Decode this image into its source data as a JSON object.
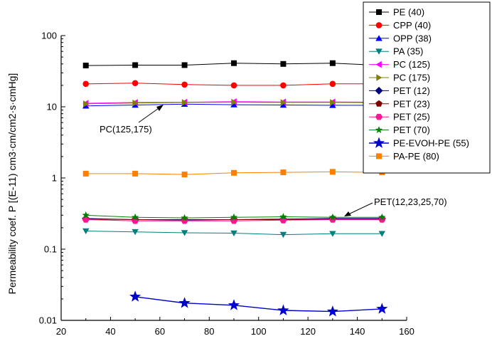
{
  "chart_data": {
    "type": "line",
    "title": "",
    "xlabel": "",
    "ylabel": "Permeability coef. P [(E-11) cm3·cm/cm2·s·cmHg]",
    "xlim": [
      20,
      160
    ],
    "ylim": [
      0.01,
      100
    ],
    "yscale": "log",
    "x_ticks": [
      "20",
      "40",
      "60",
      "80",
      "100",
      "120",
      "140",
      "160"
    ],
    "y_ticks": [
      "0.01",
      "0.1",
      "1",
      "10",
      "100"
    ],
    "grid": false,
    "legend_position": "top-right",
    "series": [
      {
        "name": "PE (40)",
        "color": "#000000",
        "marker": "square",
        "x": [
          30,
          50,
          70,
          90,
          110,
          130,
          150
        ],
        "y": [
          38,
          38.5,
          38.5,
          41,
          40,
          41,
          38
        ]
      },
      {
        "name": "CPP (40)",
        "color": "#ff0000",
        "marker": "circle",
        "x": [
          30,
          50,
          70,
          90,
          110,
          130,
          150
        ],
        "y": [
          21,
          21.5,
          20.5,
          20,
          20,
          21,
          21
        ]
      },
      {
        "name": "OPP (38)",
        "color": "#0000ff",
        "marker": "triangle-up",
        "x": [
          30,
          50,
          70,
          90,
          110,
          130,
          150
        ],
        "y": [
          10.3,
          10.6,
          10.9,
          10.7,
          10.6,
          10.5,
          10.5
        ]
      },
      {
        "name": "PA (35)",
        "color": "#008080",
        "marker": "triangle-down",
        "x": [
          30,
          50,
          70,
          90,
          110,
          130,
          150
        ],
        "y": [
          0.18,
          0.175,
          0.17,
          0.168,
          0.16,
          0.165,
          0.165
        ]
      },
      {
        "name": "PC (125)",
        "color": "#ff00ff",
        "marker": "triangle-left",
        "x": [
          30,
          50,
          70,
          90,
          110,
          130,
          150
        ],
        "y": [
          11.2,
          11.5,
          11.6,
          11.8,
          11.7,
          11.7,
          11.6
        ]
      },
      {
        "name": "PC (175)",
        "color": "#808000",
        "marker": "triangle-right",
        "x": [
          30,
          50,
          70,
          90,
          110,
          130,
          150
        ],
        "y": [
          11.0,
          11.3,
          11.5,
          11.6,
          11.5,
          11.5,
          11.4
        ]
      },
      {
        "name": "PET (12)",
        "color": "#000080",
        "marker": "diamond",
        "x": [
          30,
          50,
          70,
          90,
          110,
          130,
          150
        ],
        "y": [
          0.27,
          0.26,
          0.26,
          0.26,
          0.265,
          0.27,
          0.27
        ]
      },
      {
        "name": "PET (23)",
        "color": "#800000",
        "marker": "pentagon",
        "x": [
          30,
          50,
          70,
          90,
          110,
          130,
          150
        ],
        "y": [
          0.265,
          0.26,
          0.255,
          0.26,
          0.26,
          0.265,
          0.265
        ]
      },
      {
        "name": "PET (25)",
        "color": "#ff1493",
        "marker": "hexagon",
        "x": [
          30,
          50,
          70,
          90,
          110,
          130,
          150
        ],
        "y": [
          0.26,
          0.25,
          0.25,
          0.25,
          0.255,
          0.26,
          0.26
        ]
      },
      {
        "name": "PET (70)",
        "color": "#008000",
        "marker": "star",
        "x": [
          30,
          50,
          70,
          90,
          110,
          130,
          150
        ],
        "y": [
          0.3,
          0.28,
          0.275,
          0.28,
          0.285,
          0.28,
          0.28
        ]
      },
      {
        "name": "PE-EVOH-PE (55)",
        "color": "#0000cc",
        "marker": "star",
        "x": [
          50,
          70,
          90,
          110,
          130,
          150
        ],
        "y": [
          0.0215,
          0.0175,
          0.0163,
          0.0138,
          0.0133,
          0.0145
        ]
      },
      {
        "name": "PA-PE (80)",
        "color": "#ff8000",
        "marker": "square",
        "x": [
          30,
          50,
          70,
          90,
          110,
          130,
          150
        ],
        "y": [
          1.15,
          1.15,
          1.12,
          1.18,
          1.2,
          1.22,
          1.2
        ]
      }
    ],
    "annotations": [
      {
        "text": "PC(125,175)",
        "x": 58,
        "y": 10.0
      },
      {
        "text": "PET(12,23,25,70)",
        "x": 130,
        "y": 0.3
      }
    ]
  }
}
